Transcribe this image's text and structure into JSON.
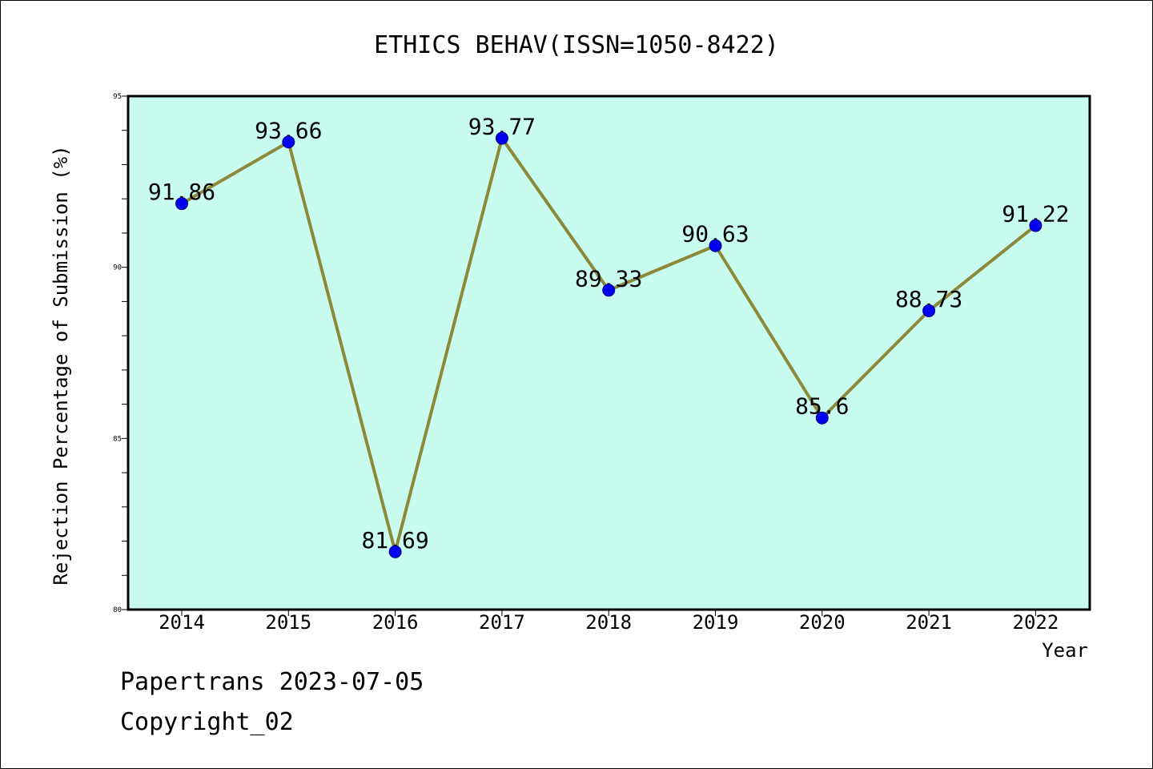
{
  "chart_data": {
    "type": "line",
    "title": "ETHICS BEHAV(ISSN=1050-8422)",
    "xlabel": "Year",
    "ylabel": "Rejection Percentage of Submission (%)",
    "categories": [
      "2014",
      "2015",
      "2016",
      "2017",
      "2018",
      "2019",
      "2020",
      "2021",
      "2022"
    ],
    "values": [
      91.86,
      93.66,
      81.69,
      93.77,
      89.33,
      90.63,
      85.6,
      88.73,
      91.22
    ],
    "data_labels": [
      "91.86",
      "93.66",
      "81.69",
      "93.77",
      "89.33",
      "90.63",
      "85.6",
      "88.73",
      "91.22"
    ],
    "ylim": [
      80,
      95
    ],
    "yticks": [
      "80",
      "85",
      "90",
      "95"
    ],
    "grid": false,
    "legend": "none",
    "colors": {
      "plot_background": "#c7fcee",
      "line": "#8c8a3a",
      "marker": "#0000ee",
      "frame": "#000000"
    }
  },
  "footer": {
    "line1": "Papertrans 2023-07-05",
    "line2": "Copyright_02"
  }
}
